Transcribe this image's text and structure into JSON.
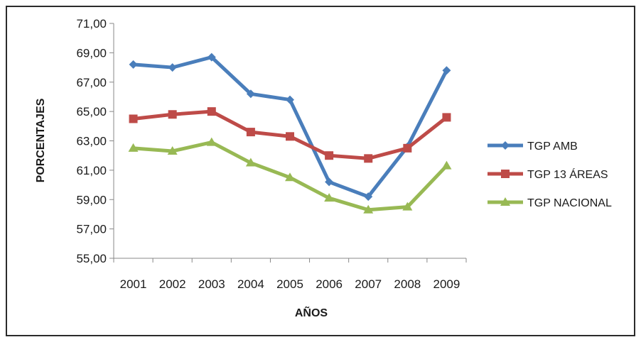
{
  "chart_data": {
    "type": "line",
    "title": "",
    "xlabel": "AÑOS",
    "ylabel": "PORCENTAJES",
    "categories": [
      "2001",
      "2002",
      "2003",
      "2004",
      "2005",
      "2006",
      "2007",
      "2008",
      "2009"
    ],
    "y_ticks": [
      "55,00",
      "57,00",
      "59,00",
      "61,00",
      "63,00",
      "65,00",
      "67,00",
      "69,00",
      "71,00"
    ],
    "ylim": [
      55,
      71
    ],
    "grid": false,
    "legend_position": "right",
    "series": [
      {
        "name": "TGP AMB",
        "color": "#4a7ebb",
        "marker": "diamond",
        "values": [
          68.2,
          68.0,
          68.7,
          66.2,
          65.8,
          60.2,
          59.2,
          62.6,
          67.8
        ]
      },
      {
        "name": "TGP 13 ÁREAS",
        "color": "#be4b48",
        "marker": "square",
        "values": [
          64.5,
          64.8,
          65.0,
          63.6,
          63.3,
          62.0,
          61.8,
          62.5,
          64.6
        ]
      },
      {
        "name": "TGP NACIONAL",
        "color": "#98b954",
        "marker": "triangle",
        "values": [
          62.5,
          62.3,
          62.9,
          61.5,
          60.5,
          59.1,
          58.3,
          58.5,
          61.3
        ]
      }
    ]
  }
}
